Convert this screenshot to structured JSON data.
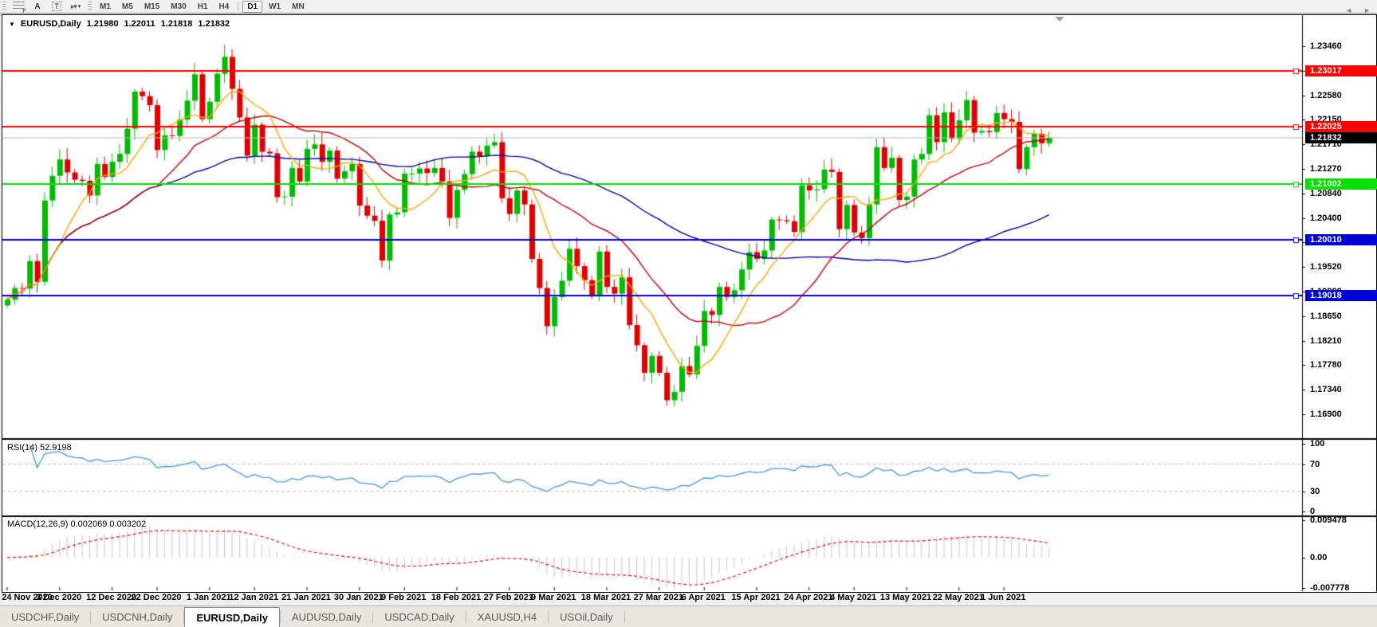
{
  "toolbar": {
    "tool_glyphs": {
      "fibonacci": "F",
      "arrow_text": "A",
      "text_box": "T",
      "shapes": "▸▾"
    },
    "timeframes": [
      "M1",
      "M5",
      "M15",
      "M30",
      "H1",
      "H4",
      "D1",
      "W1",
      "MN"
    ],
    "active_timeframe": "D1"
  },
  "chart": {
    "title": {
      "symbol": "EURUSD,Daily",
      "open": "1.21980",
      "high": "1.22011",
      "low": "1.21818",
      "close": "1.21832"
    }
  },
  "chart_data": {
    "type": "candlestick",
    "symbol": "EURUSD",
    "timeframe": "Daily",
    "up_color": "#00BB00",
    "down_color": "#E00000",
    "price_ticks": [
      "1.23460",
      "1.23020",
      "1.22580",
      "1.22150",
      "1.21710",
      "1.21270",
      "1.20840",
      "1.20400",
      "1.19960",
      "1.19520",
      "1.19080",
      "1.18650",
      "1.18210",
      "1.17780",
      "1.17340",
      "1.16900"
    ],
    "hlines": [
      {
        "price": 1.23017,
        "label": "1.23017",
        "color": "#FF0000"
      },
      {
        "price": 1.22025,
        "label": "1.22025",
        "color": "#FF0000"
      },
      {
        "price": 1.21002,
        "label": "1.21002",
        "color": "#00E100"
      },
      {
        "price": 1.2001,
        "label": "1.20010",
        "color": "#0000D8"
      },
      {
        "price": 1.19018,
        "label": "1.19018",
        "color": "#0000D8"
      }
    ],
    "current_price": {
      "value": 1.21832,
      "label": "1.21832",
      "line_color": "#b8b8b8",
      "badge_color": "#000000"
    },
    "first_open": 1.1884,
    "closes": [
      1.1894,
      1.1915,
      1.1914,
      1.1963,
      1.1926,
      1.2071,
      1.2115,
      1.2144,
      1.2121,
      1.2108,
      1.2106,
      1.208,
      1.2136,
      1.2113,
      1.214,
      1.2154,
      1.2199,
      1.2265,
      1.2257,
      1.2241,
      1.2161,
      1.2187,
      1.2186,
      1.2215,
      1.2249,
      1.2296,
      1.2216,
      1.2247,
      1.2297,
      1.2327,
      1.227,
      1.2219,
      1.2151,
      1.2206,
      1.2158,
      1.2155,
      1.2077,
      1.2078,
      1.2129,
      1.2105,
      1.2163,
      1.2171,
      1.214,
      1.216,
      1.211,
      1.2123,
      1.2136,
      1.2062,
      1.2044,
      1.2035,
      1.1964,
      1.2046,
      1.205,
      1.2119,
      1.2119,
      1.2128,
      1.212,
      1.2129,
      1.2105,
      1.204,
      1.209,
      1.2118,
      1.2158,
      1.215,
      1.2169,
      1.2175,
      1.2075,
      1.2047,
      1.2089,
      1.2064,
      1.1967,
      1.1915,
      1.1847,
      1.1899,
      1.1928,
      1.1985,
      1.1954,
      1.1929,
      1.19,
      1.198,
      1.1917,
      1.1905,
      1.1934,
      1.1849,
      1.1813,
      1.1764,
      1.1794,
      1.1764,
      1.1715,
      1.173,
      1.1776,
      1.1761,
      1.1812,
      1.1874,
      1.1867,
      1.1917,
      1.1899,
      1.1911,
      1.1948,
      1.1979,
      1.1967,
      1.1982,
      1.2037,
      1.2036,
      1.2034,
      1.2015,
      1.2098,
      1.2089,
      1.2091,
      1.2126,
      1.2122,
      1.202,
      1.2063,
      1.2014,
      1.2004,
      1.2064,
      1.2166,
      1.2129,
      1.2147,
      1.2072,
      1.2078,
      1.2144,
      1.2154,
      1.2223,
      1.2175,
      1.2228,
      1.2181,
      1.2214,
      1.225,
      1.2192,
      1.2195,
      1.2193,
      1.2227,
      1.2216,
      1.2211,
      1.2127,
      1.2166,
      1.219,
      1.2173,
      1.21832
    ],
    "wick_overrides": {
      "29": {
        "h": 1.2349
      },
      "50": {
        "l": 1.1952
      },
      "80": {
        "l": 1.1906
      },
      "89": {
        "l": 1.1704
      },
      "128": {
        "h": 1.2266
      }
    },
    "moving_averages": [
      {
        "period": 8,
        "color": "#FFA500"
      },
      {
        "period": 21,
        "color": "#CC0000"
      },
      {
        "period": 55,
        "color": "#0000A8"
      }
    ],
    "date_labels": [
      {
        "label": "24 Nov 2020",
        "index": 0
      },
      {
        "label": "3 Dec 2020",
        "index": 7
      },
      {
        "label": "12 Dec 2020",
        "index": 14
      },
      {
        "label": "22 Dec 2020",
        "index": 20
      },
      {
        "label": "1 Jan 2021",
        "index": 27
      },
      {
        "label": "12 Jan 2021",
        "index": 33
      },
      {
        "label": "21 Jan 2021",
        "index": 40
      },
      {
        "label": "30 Jan 2021",
        "index": 47
      },
      {
        "label": "9 Feb 2021",
        "index": 53
      },
      {
        "label": "18 Feb 2021",
        "index": 60
      },
      {
        "label": "27 Feb 2021",
        "index": 67
      },
      {
        "label": "9 Mar 2021",
        "index": 73
      },
      {
        "label": "18 Mar 2021",
        "index": 80
      },
      {
        "label": "27 Mar 2021",
        "index": 87
      },
      {
        "label": "6 Apr 2021",
        "index": 93
      },
      {
        "label": "15 Apr 2021",
        "index": 100
      },
      {
        "label": "24 Apr 2021",
        "index": 107
      },
      {
        "label": "4 May 2021",
        "index": 113
      },
      {
        "label": "13 May 2021",
        "index": 120
      },
      {
        "label": "22 May 2021",
        "index": 127
      },
      {
        "label": "1 Jun 2021",
        "index": 133
      }
    ],
    "rsi": {
      "label": "RSI(14) 52.9198",
      "period": 14,
      "line_color": "#3A99E8",
      "ticks": [
        {
          "text": "100",
          "value": 100
        },
        {
          "text": "70",
          "value": 70
        },
        {
          "text": "30",
          "value": 30
        },
        {
          "text": "0",
          "value": 0
        }
      ],
      "dashed_levels": [
        70,
        30
      ]
    },
    "macd": {
      "label": "MACD(12,26,9) 0.002069 0.003202",
      "fast": 12,
      "slow": 26,
      "signal": 9,
      "histogram_color": "#c6c6c6",
      "signal_color": "#FF0000",
      "ticks": [
        {
          "text": "0.009478",
          "value": 0.009478
        },
        {
          "text": "0.00",
          "value": 0.0
        },
        {
          "text": "-0.007778",
          "value": -0.007778
        }
      ]
    }
  },
  "tabs": {
    "items": [
      "USDCHF,Daily",
      "USDCNH,Daily",
      "EURUSD,Daily",
      "AUDUSD,Daily",
      "USDCAD,Daily",
      "XAUUSD,H4",
      "USOil,Daily"
    ],
    "active": "EURUSD,Daily",
    "scroll_left_icon": "◄",
    "scroll_right_icon": "►"
  }
}
